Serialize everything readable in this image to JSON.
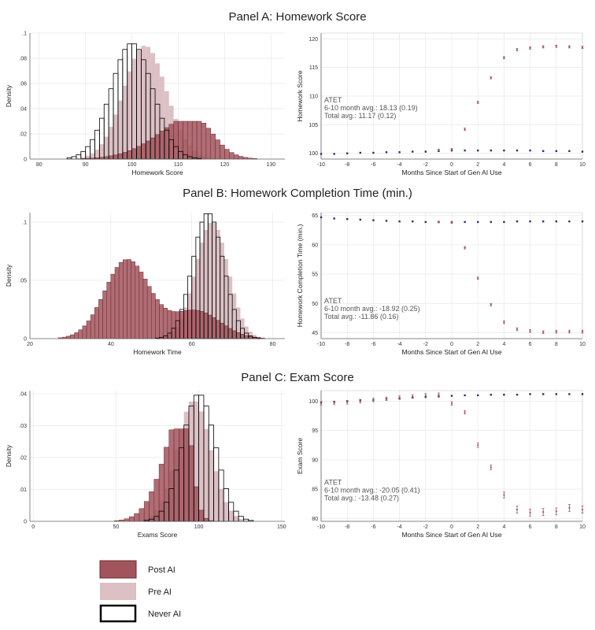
{
  "colors": {
    "post": "#a2545c",
    "post_edge": "#6b2a31",
    "pre": "#dcc0c4",
    "never": "#000000",
    "control_marker": "#2d2f6e",
    "treated_marker": "#a2545c",
    "grid": "#e8e8e8"
  },
  "legend": [
    {
      "label": "Post AI",
      "style": "post"
    },
    {
      "label": "Pre AI",
      "style": "pre"
    },
    {
      "label": "Never AI",
      "style": "never"
    }
  ],
  "panels": [
    {
      "title": "Panel A: Homework Score",
      "hist": {
        "xlabel": "Homework Score",
        "ylabel": "Density",
        "xlim": [
          78,
          133
        ],
        "ylim": [
          0,
          0.1
        ],
        "xticks": [
          80,
          90,
          100,
          110,
          120,
          130
        ],
        "yticks": [
          0,
          0.02,
          0.04,
          0.06,
          0.08,
          0.1
        ],
        "ytick_labels": [
          "0",
          ".02",
          ".04",
          ".06",
          ".08",
          ".1"
        ],
        "bin_width": 1,
        "post": {
          "mean": 117,
          "sd": 9,
          "skew": -2.2,
          "peak": 0.03,
          "range": [
            82,
            132
          ]
        },
        "pre": {
          "mean": 101,
          "sd": 5,
          "skew": 0.5,
          "peak": 0.09,
          "range": [
            86,
            118
          ]
        },
        "never": {
          "mean": 100,
          "sd": 4.5,
          "skew": 0,
          "peak": 0.092,
          "range": [
            86,
            116
          ]
        }
      },
      "event": {
        "xlabel": "Months Since Start of Gen AI Use",
        "ylabel": "Homework Score",
        "xlim": [
          -10,
          10
        ],
        "ylim": [
          99,
          121
        ],
        "xticks": [
          -10,
          -8,
          -6,
          -4,
          -2,
          0,
          2,
          4,
          6,
          8,
          10
        ],
        "yticks": [
          100,
          105,
          110,
          115,
          120
        ],
        "notes": [
          "ATET",
          "6-10 month avg.: 18.13 (0.19)",
          "Total avg.: 11.17 (0.12)"
        ],
        "notes_pos": "middle-left",
        "control_x": [
          -10,
          -9,
          -8,
          -7,
          -6,
          -5,
          -4,
          -3,
          -2,
          -1,
          0,
          1,
          2,
          3,
          4,
          5,
          6,
          7,
          8,
          9,
          10
        ],
        "control_y": [
          99.9,
          99.9,
          100.0,
          100.1,
          100.1,
          100.2,
          100.2,
          100.3,
          100.3,
          100.4,
          100.5,
          100.5,
          100.5,
          100.5,
          100.5,
          100.5,
          100.5,
          100.4,
          100.4,
          100.4,
          100.3
        ],
        "treated_x": [
          -1,
          0,
          1,
          2,
          3,
          4,
          5,
          6,
          7,
          8,
          9,
          10
        ],
        "treated_y": [
          100.6,
          100.7,
          104.2,
          108.9,
          113.2,
          116.7,
          118.1,
          118.4,
          118.6,
          118.7,
          118.6,
          118.5
        ],
        "treated_err": [
          0.15,
          0.15,
          0.2,
          0.2,
          0.2,
          0.2,
          0.2,
          0.2,
          0.2,
          0.2,
          0.2,
          0.2
        ]
      }
    },
    {
      "title": "Panel B: Homework Completion Time (min.)",
      "hist": {
        "xlabel": "Homework Time",
        "ylabel": "Density",
        "xlim": [
          20,
          83
        ],
        "ylim": [
          0,
          0.108
        ],
        "xticks": [
          20,
          40,
          60,
          80
        ],
        "yticks": [
          0,
          0.05,
          0.1
        ],
        "ytick_labels": [
          "0",
          ".05",
          ".1"
        ],
        "bin_width": 1,
        "post": {
          "bimodal": true,
          "m1": 44,
          "s1": 5.5,
          "p1": 0.068,
          "m2": 61,
          "s2": 6,
          "p2": 0.024,
          "range": [
            24,
            80
          ]
        },
        "pre": {
          "mean": 65,
          "sd": 4,
          "skew": 0,
          "peak": 0.1,
          "range": [
            50,
            80
          ]
        },
        "never": {
          "mean": 64,
          "sd": 3.8,
          "skew": 0,
          "peak": 0.108,
          "range": [
            50,
            80
          ]
        }
      },
      "event": {
        "xlabel": "Months Since Start of Gen AI Use",
        "ylabel": "Homework Completion Time (min.)",
        "xlim": [
          -10,
          10
        ],
        "ylim": [
          44,
          65.5
        ],
        "xticks": [
          -10,
          -8,
          -6,
          -4,
          -2,
          0,
          2,
          4,
          6,
          8,
          10
        ],
        "yticks": [
          45,
          50,
          55,
          60,
          65
        ],
        "notes": [
          "ATET",
          "6-10 month avg.: -18.92 (0.25)",
          "Total avg.: -11.86 (0.16)"
        ],
        "notes_pos": "bottom-left",
        "control_x": [
          -10,
          -9,
          -8,
          -7,
          -6,
          -5,
          -4,
          -3,
          -2,
          -1,
          0,
          1,
          2,
          3,
          4,
          5,
          6,
          7,
          8,
          9,
          10
        ],
        "control_y": [
          64.7,
          64.5,
          64.4,
          64.3,
          64.2,
          64.1,
          64.0,
          64.0,
          63.9,
          63.9,
          63.9,
          63.9,
          63.9,
          63.9,
          63.9,
          64.0,
          64.0,
          64.0,
          64.0,
          64.0,
          64.0
        ],
        "treated_x": [
          -1,
          0,
          1,
          2,
          3,
          4,
          5,
          6,
          7,
          8,
          9,
          10
        ],
        "treated_y": [
          63.9,
          63.8,
          59.5,
          54.3,
          49.8,
          46.8,
          45.6,
          45.3,
          45.1,
          45.2,
          45.2,
          45.2
        ],
        "treated_err": [
          0.15,
          0.15,
          0.2,
          0.2,
          0.2,
          0.25,
          0.25,
          0.25,
          0.25,
          0.25,
          0.25,
          0.25
        ]
      }
    },
    {
      "title": "Panel C: Exam Score",
      "hist": {
        "xlabel": "Exams Score",
        "ylabel": "Density",
        "xlim": [
          -2,
          152
        ],
        "ylim": [
          0,
          0.041
        ],
        "xticks": [
          0,
          50,
          100,
          150
        ],
        "yticks": [
          0,
          0.01,
          0.02,
          0.03,
          0.04
        ],
        "ytick_labels": [
          "0",
          ".01",
          ".02",
          ".03",
          ".04"
        ],
        "bin_width": 3,
        "post": {
          "mean": 96,
          "sd": 14,
          "skew": -3.5,
          "peak": 0.029,
          "range": [
            15,
            138
          ]
        },
        "pre": {
          "mean": 101,
          "sd": 11,
          "skew": -0.5,
          "peak": 0.038,
          "range": [
            55,
            138
          ]
        },
        "never": {
          "mean": 100,
          "sd": 10,
          "skew": 0,
          "peak": 0.04,
          "range": [
            60,
            138
          ]
        }
      },
      "event": {
        "xlabel": "Months Since Start of Gen AI Use",
        "ylabel": "Exam Score",
        "xlim": [
          -10,
          10
        ],
        "ylim": [
          79.5,
          101.8
        ],
        "xticks": [
          -10,
          -8,
          -6,
          -4,
          -2,
          0,
          2,
          4,
          6,
          8,
          10
        ],
        "yticks": [
          80,
          85,
          90,
          95,
          100
        ],
        "notes": [
          "ATET",
          "6-10 month avg.: -20.05 (0.41)",
          "Total avg.: -13.48 (0.27)"
        ],
        "notes_pos": "bottom-left",
        "control_x": [
          -10,
          -9,
          -8,
          -7,
          -6,
          -5,
          -4,
          -3,
          -2,
          -1,
          0,
          1,
          2,
          3,
          4,
          5,
          6,
          7,
          8,
          9,
          10
        ],
        "control_y": [
          99.8,
          99.9,
          100.0,
          100.1,
          100.2,
          100.4,
          100.5,
          100.6,
          100.7,
          100.8,
          100.9,
          101.0,
          101.0,
          101.1,
          101.1,
          101.1,
          101.2,
          101.2,
          101.2,
          101.2,
          101.2
        ],
        "treated_x": [
          -10,
          -9,
          -8,
          -7,
          -6,
          -5,
          -4,
          -3,
          -2,
          -1,
          0,
          1,
          2,
          3,
          4,
          5,
          6,
          7,
          8,
          9,
          10
        ],
        "treated_y": [
          99.6,
          99.7,
          99.8,
          100.0,
          100.2,
          100.4,
          100.6,
          100.8,
          101.0,
          101.1,
          99.6,
          98.1,
          92.5,
          88.7,
          84.0,
          81.5,
          81.0,
          81.1,
          81.2,
          81.8,
          81.5
        ],
        "treated_err": [
          0.3,
          0.3,
          0.3,
          0.3,
          0.3,
          0.3,
          0.3,
          0.3,
          0.3,
          0.3,
          0.3,
          0.3,
          0.4,
          0.4,
          0.5,
          0.6,
          0.6,
          0.6,
          0.6,
          0.6,
          0.6
        ]
      }
    }
  ],
  "chart_data": [
    {
      "type": "bar",
      "title": "Panel A: Homework Score",
      "subtype": "histogram",
      "xlabel": "Homework Score",
      "ylabel": "Density",
      "xlim": [
        78,
        133
      ],
      "ylim": [
        0,
        0.1
      ],
      "series": [
        {
          "name": "Post AI",
          "peak_x": 121,
          "peak_density": 0.03
        },
        {
          "name": "Pre AI",
          "peak_x": 101,
          "peak_density": 0.09
        },
        {
          "name": "Never AI",
          "peak_x": 100,
          "peak_density": 0.092
        }
      ]
    },
    {
      "type": "scatter",
      "title": "Panel A: Homework Score",
      "xlabel": "Months Since Start of Gen AI Use",
      "ylabel": "Homework Score",
      "xlim": [
        -10,
        10
      ],
      "ylim": [
        99,
        121
      ],
      "annotation": "ATET / 6-10 month avg.: 18.13 (0.19) / Total avg.: 11.17 (0.12)"
    },
    {
      "type": "bar",
      "title": "Panel B: Homework Completion Time (min.)",
      "subtype": "histogram",
      "xlabel": "Homework Time",
      "ylabel": "Density",
      "xlim": [
        20,
        83
      ],
      "ylim": [
        0,
        0.108
      ],
      "series": [
        {
          "name": "Post AI",
          "peak_x": 44,
          "peak_density": 0.068
        },
        {
          "name": "Pre AI",
          "peak_x": 65,
          "peak_density": 0.1
        },
        {
          "name": "Never AI",
          "peak_x": 64,
          "peak_density": 0.108
        }
      ]
    },
    {
      "type": "scatter",
      "title": "Panel B: Homework Completion Time (min.)",
      "xlabel": "Months Since Start of Gen AI Use",
      "ylabel": "Homework Completion Time (min.)",
      "xlim": [
        -10,
        10
      ],
      "ylim": [
        44,
        65.5
      ],
      "annotation": "ATET / 6-10 month avg.: -18.92 (0.25) / Total avg.: -11.86 (0.16)"
    },
    {
      "type": "bar",
      "title": "Panel C: Exam Score",
      "subtype": "histogram",
      "xlabel": "Exams Score",
      "ylabel": "Density",
      "xlim": [
        -2,
        152
      ],
      "ylim": [
        0,
        0.041
      ],
      "series": [
        {
          "name": "Post AI",
          "peak_x": 96,
          "peak_density": 0.029
        },
        {
          "name": "Pre AI",
          "peak_x": 101,
          "peak_density": 0.038
        },
        {
          "name": "Never AI",
          "peak_x": 100,
          "peak_density": 0.04
        }
      ]
    },
    {
      "type": "scatter",
      "title": "Panel C: Exam Score",
      "xlabel": "Months Since Start of Gen AI Use",
      "ylabel": "Exam Score",
      "xlim": [
        -10,
        10
      ],
      "ylim": [
        79.5,
        101.8
      ],
      "annotation": "ATET / 6-10 month avg.: -20.05 (0.41) / Total avg.: -13.48 (0.27)"
    }
  ]
}
